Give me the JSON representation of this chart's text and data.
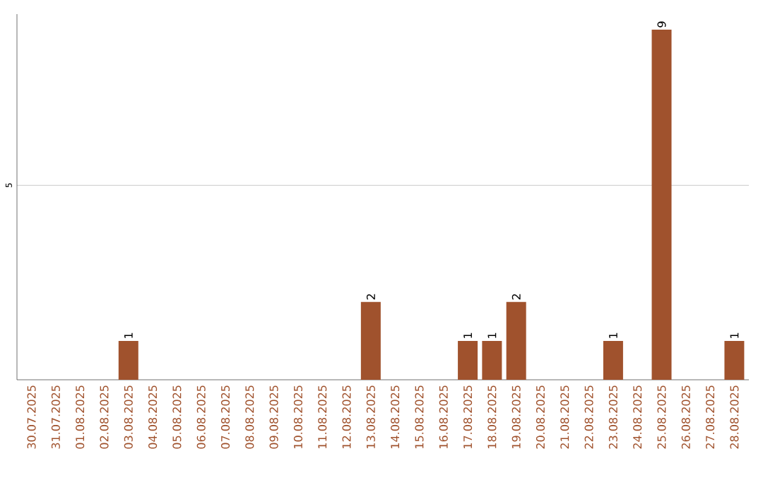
{
  "chart_data": {
    "type": "bar",
    "categories": [
      "30.07.2025",
      "31.07.2025",
      "01.08.2025",
      "02.08.2025",
      "03.08.2025",
      "04.08.2025",
      "05.08.2025",
      "06.08.2025",
      "07.08.2025",
      "08.08.2025",
      "09.08.2025",
      "10.08.2025",
      "11.08.2025",
      "12.08.2025",
      "13.08.2025",
      "14.08.2025",
      "15.08.2025",
      "16.08.2025",
      "17.08.2025",
      "18.08.2025",
      "19.08.2025",
      "20.08.2025",
      "21.08.2025",
      "22.08.2025",
      "23.08.2025",
      "24.08.2025",
      "25.08.2025",
      "26.08.2025",
      "27.08.2025",
      "28.08.2025"
    ],
    "values": [
      0,
      0,
      0,
      0,
      1,
      0,
      0,
      0,
      0,
      0,
      0,
      0,
      0,
      0,
      2,
      0,
      0,
      0,
      1,
      1,
      2,
      0,
      0,
      0,
      1,
      0,
      9,
      0,
      0,
      1
    ],
    "value_labels": [
      null,
      null,
      null,
      null,
      "1",
      null,
      null,
      null,
      null,
      null,
      null,
      null,
      null,
      null,
      "2",
      null,
      null,
      null,
      "1",
      "1",
      "2",
      null,
      null,
      null,
      "1",
      null,
      "9",
      null,
      null,
      "1"
    ],
    "color": "#a0522d",
    "ylim": [
      0,
      9.4
    ],
    "yticks": [
      5
    ],
    "grid": "y"
  }
}
